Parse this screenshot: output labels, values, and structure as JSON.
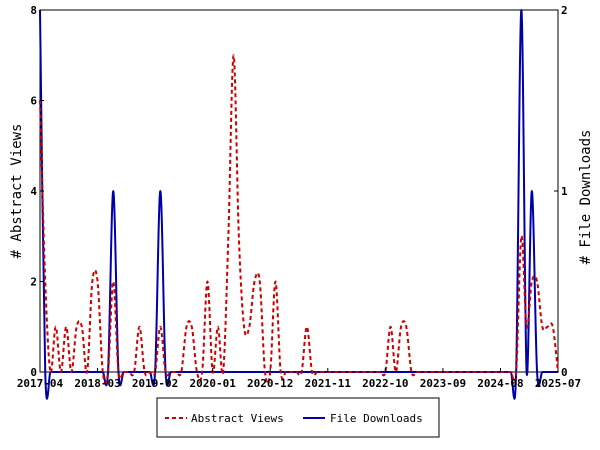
{
  "chart_data": {
    "type": "line",
    "ylabel_left": "# Abstract Views",
    "ylabel_right": "# File Downloads",
    "ylim_left": [
      0,
      8
    ],
    "ylim_right": [
      0,
      2
    ],
    "yticks_left": [
      "0",
      "2",
      "4",
      "6",
      "8"
    ],
    "yticks_right": [
      "0",
      "1",
      "2"
    ],
    "x_tick_labels": [
      "2017-04",
      "2018-03",
      "2019-02",
      "2020-01",
      "2020-12",
      "2021-11",
      "2022-10",
      "2023-09",
      "2024-08",
      "2025-07"
    ],
    "x_range": [
      "2017-04",
      "2025-07"
    ],
    "legend_position": "bottom",
    "series": [
      {
        "name": "Abstract Views",
        "axis": "left",
        "color": "#cc0000",
        "style": "dashed",
        "points": [
          [
            "2017-04",
            6
          ],
          [
            "2017-05",
            2
          ],
          [
            "2017-06",
            0
          ],
          [
            "2017-07",
            1
          ],
          [
            "2017-08",
            0
          ],
          [
            "2017-09",
            1
          ],
          [
            "2017-10",
            0
          ],
          [
            "2017-11",
            1
          ],
          [
            "2017-12",
            1
          ],
          [
            "2018-01",
            0
          ],
          [
            "2018-02",
            2
          ],
          [
            "2018-03",
            2
          ],
          [
            "2018-04",
            0
          ],
          [
            "2018-05",
            0
          ],
          [
            "2018-06",
            2
          ],
          [
            "2018-07",
            0
          ],
          [
            "2018-08",
            0
          ],
          [
            "2018-09",
            0
          ],
          [
            "2018-10",
            0
          ],
          [
            "2018-11",
            1
          ],
          [
            "2018-12",
            0
          ],
          [
            "2019-01",
            0
          ],
          [
            "2019-02",
            0
          ],
          [
            "2019-03",
            1
          ],
          [
            "2019-04",
            0
          ],
          [
            "2019-05",
            0
          ],
          [
            "2019-06",
            0
          ],
          [
            "2019-07",
            0
          ],
          [
            "2019-08",
            1
          ],
          [
            "2019-09",
            1
          ],
          [
            "2019-10",
            0
          ],
          [
            "2019-11",
            0
          ],
          [
            "2019-12",
            2
          ],
          [
            "2020-01",
            0
          ],
          [
            "2020-02",
            1
          ],
          [
            "2020-03",
            0
          ],
          [
            "2020-04",
            3
          ],
          [
            "2020-05",
            7
          ],
          [
            "2020-06",
            3
          ],
          [
            "2020-07",
            1
          ],
          [
            "2020-08",
            1
          ],
          [
            "2020-09",
            2
          ],
          [
            "2020-10",
            2
          ],
          [
            "2020-11",
            0
          ],
          [
            "2020-12",
            0
          ],
          [
            "2021-01",
            2
          ],
          [
            "2021-02",
            0
          ],
          [
            "2021-03",
            0
          ],
          [
            "2021-04",
            0
          ],
          [
            "2021-05",
            0
          ],
          [
            "2021-06",
            0
          ],
          [
            "2021-07",
            1
          ],
          [
            "2021-08",
            0
          ],
          [
            "2021-09",
            0
          ],
          [
            "2021-10",
            0
          ],
          [
            "2021-11",
            0
          ],
          [
            "2021-12",
            0
          ],
          [
            "2022-01",
            0
          ],
          [
            "2022-02",
            0
          ],
          [
            "2022-03",
            0
          ],
          [
            "2022-04",
            0
          ],
          [
            "2022-05",
            0
          ],
          [
            "2022-06",
            0
          ],
          [
            "2022-07",
            0
          ],
          [
            "2022-08",
            0
          ],
          [
            "2022-09",
            0
          ],
          [
            "2022-10",
            0
          ],
          [
            "2022-11",
            1
          ],
          [
            "2022-12",
            0
          ],
          [
            "2023-01",
            1
          ],
          [
            "2023-02",
            1
          ],
          [
            "2023-03",
            0
          ],
          [
            "2023-04",
            0
          ],
          [
            "2023-05",
            0
          ],
          [
            "2023-06",
            0
          ],
          [
            "2023-07",
            0
          ],
          [
            "2023-08",
            0
          ],
          [
            "2023-09",
            0
          ],
          [
            "2023-10",
            0
          ],
          [
            "2023-11",
            0
          ],
          [
            "2023-12",
            0
          ],
          [
            "2024-01",
            0
          ],
          [
            "2024-02",
            0
          ],
          [
            "2024-03",
            0
          ],
          [
            "2024-04",
            0
          ],
          [
            "2024-05",
            0
          ],
          [
            "2024-06",
            0
          ],
          [
            "2024-07",
            0
          ],
          [
            "2024-08",
            0
          ],
          [
            "2024-09",
            0
          ],
          [
            "2024-10",
            0
          ],
          [
            "2024-11",
            0
          ],
          [
            "2024-12",
            3
          ],
          [
            "2025-01",
            1
          ],
          [
            "2025-02",
            2
          ],
          [
            "2025-03",
            2
          ],
          [
            "2025-04",
            1
          ],
          [
            "2025-05",
            1
          ],
          [
            "2025-06",
            1
          ],
          [
            "2025-07",
            0
          ]
        ]
      },
      {
        "name": "File Downloads",
        "axis": "right",
        "color": "#0000aa",
        "style": "solid",
        "points": [
          [
            "2017-04",
            2
          ],
          [
            "2017-05",
            0
          ],
          [
            "2017-06",
            0
          ],
          [
            "2017-07",
            0
          ],
          [
            "2017-08",
            0
          ],
          [
            "2017-09",
            0
          ],
          [
            "2017-10",
            0
          ],
          [
            "2017-11",
            0
          ],
          [
            "2017-12",
            0
          ],
          [
            "2018-01",
            0
          ],
          [
            "2018-02",
            0
          ],
          [
            "2018-03",
            0
          ],
          [
            "2018-04",
            0
          ],
          [
            "2018-05",
            0
          ],
          [
            "2018-06",
            1
          ],
          [
            "2018-07",
            0
          ],
          [
            "2018-08",
            0
          ],
          [
            "2018-09",
            0
          ],
          [
            "2018-10",
            0
          ],
          [
            "2018-11",
            0
          ],
          [
            "2018-12",
            0
          ],
          [
            "2019-01",
            0
          ],
          [
            "2019-02",
            0
          ],
          [
            "2019-03",
            1
          ],
          [
            "2019-04",
            0
          ],
          [
            "2019-05",
            0
          ],
          [
            "2019-06",
            0
          ],
          [
            "2019-07",
            0
          ],
          [
            "2019-08",
            0
          ],
          [
            "2019-09",
            0
          ],
          [
            "2019-10",
            0
          ],
          [
            "2019-11",
            0
          ],
          [
            "2019-12",
            0
          ],
          [
            "2020-01",
            0
          ],
          [
            "2020-02",
            0
          ],
          [
            "2020-03",
            0
          ],
          [
            "2020-04",
            0
          ],
          [
            "2020-05",
            0
          ],
          [
            "2020-06",
            0
          ],
          [
            "2020-07",
            0
          ],
          [
            "2020-08",
            0
          ],
          [
            "2020-09",
            0
          ],
          [
            "2020-10",
            0
          ],
          [
            "2020-11",
            0
          ],
          [
            "2020-12",
            0
          ],
          [
            "2021-01",
            0
          ],
          [
            "2021-02",
            0
          ],
          [
            "2021-03",
            0
          ],
          [
            "2021-04",
            0
          ],
          [
            "2021-05",
            0
          ],
          [
            "2021-06",
            0
          ],
          [
            "2021-07",
            0
          ],
          [
            "2021-08",
            0
          ],
          [
            "2021-09",
            0
          ],
          [
            "2021-10",
            0
          ],
          [
            "2021-11",
            0
          ],
          [
            "2021-12",
            0
          ],
          [
            "2022-01",
            0
          ],
          [
            "2022-02",
            0
          ],
          [
            "2022-03",
            0
          ],
          [
            "2022-04",
            0
          ],
          [
            "2022-05",
            0
          ],
          [
            "2022-06",
            0
          ],
          [
            "2022-07",
            0
          ],
          [
            "2022-08",
            0
          ],
          [
            "2022-09",
            0
          ],
          [
            "2022-10",
            0
          ],
          [
            "2022-11",
            0
          ],
          [
            "2022-12",
            0
          ],
          [
            "2023-01",
            0
          ],
          [
            "2023-02",
            0
          ],
          [
            "2023-03",
            0
          ],
          [
            "2023-04",
            0
          ],
          [
            "2023-05",
            0
          ],
          [
            "2023-06",
            0
          ],
          [
            "2023-07",
            0
          ],
          [
            "2023-08",
            0
          ],
          [
            "2023-09",
            0
          ],
          [
            "2023-10",
            0
          ],
          [
            "2023-11",
            0
          ],
          [
            "2023-12",
            0
          ],
          [
            "2024-01",
            0
          ],
          [
            "2024-02",
            0
          ],
          [
            "2024-03",
            0
          ],
          [
            "2024-04",
            0
          ],
          [
            "2024-05",
            0
          ],
          [
            "2024-06",
            0
          ],
          [
            "2024-07",
            0
          ],
          [
            "2024-08",
            0
          ],
          [
            "2024-09",
            0
          ],
          [
            "2024-10",
            0
          ],
          [
            "2024-11",
            0
          ],
          [
            "2024-12",
            2
          ],
          [
            "2025-01",
            0
          ],
          [
            "2025-02",
            1
          ],
          [
            "2025-03",
            0
          ],
          [
            "2025-04",
            0
          ],
          [
            "2025-05",
            0
          ],
          [
            "2025-06",
            0
          ],
          [
            "2025-07",
            0
          ]
        ]
      }
    ]
  }
}
